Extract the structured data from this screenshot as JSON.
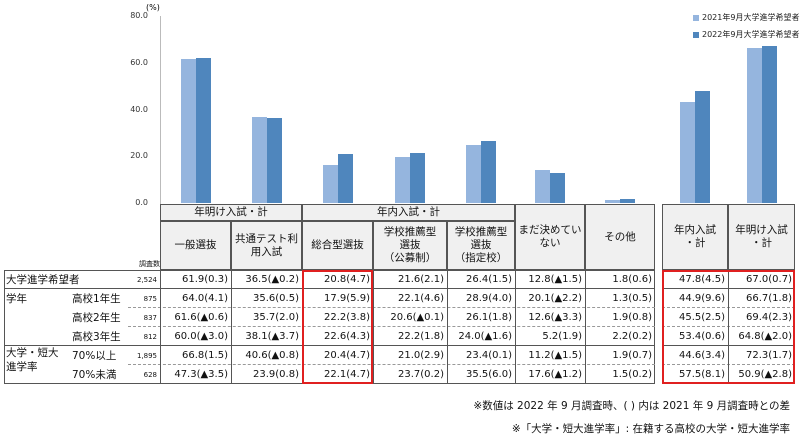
{
  "chart_data": {
    "type": "bar",
    "yunit": "(%)",
    "ylim": [
      0,
      80
    ],
    "yticks": [
      "0.0",
      "20.0",
      "40.0",
      "60.0",
      "80.0"
    ],
    "categories": [
      "一般選抜",
      "共通テスト利用入試",
      "総合型選抜",
      "学校推薦型選抜（公募制）",
      "学校推薦型選抜（指定校）",
      "まだ決めていない",
      "その他",
      "年内入試・計",
      "年明け入試・計"
    ],
    "series": [
      {
        "name": "2021年9月大学進学希望者",
        "color": "#95b5de",
        "values": [
          61.6,
          36.7,
          16.1,
          19.5,
          24.9,
          14.3,
          1.2,
          43.3,
          66.3
        ]
      },
      {
        "name": "2022年9月大学進学希望者",
        "color": "#4f86bd",
        "values": [
          61.9,
          36.5,
          20.8,
          21.6,
          26.4,
          12.8,
          1.8,
          47.8,
          67.0
        ]
      }
    ]
  },
  "table": {
    "group_headers": [
      "年明け入試・計",
      "年内入試・計"
    ],
    "count_header": "調査数",
    "col_headers": [
      "一般選抜",
      "共通テスト利\n用入試",
      "総合型選抜",
      "学校推薦型\n選抜\n（公募制）",
      "学校推薦型\n選抜\n（指定校）",
      "まだ決めてい\nない",
      "その他",
      "年内入試\n・計",
      "年明け入試\n・計"
    ],
    "row_groups": [
      "学年",
      "大学・短大\n進学率"
    ],
    "rows": [
      {
        "label": "大学進学希望者",
        "sub": "",
        "n": "2,524",
        "v": [
          "61.9(0.3)",
          "36.5(▲0.2)",
          "20.8(4.7)",
          "21.6(2.1)",
          "26.4(1.5)",
          "12.8(▲1.5)",
          "1.8(0.6)",
          "47.8(4.5)",
          "67.0(0.7)"
        ]
      },
      {
        "label": "",
        "sub": "高校1年生",
        "n": "875",
        "v": [
          "64.0(4.1)",
          "35.6(0.5)",
          "17.9(5.9)",
          "22.1(4.6)",
          "28.9(4.0)",
          "20.1(▲2.2)",
          "1.3(0.5)",
          "44.9(9.6)",
          "66.7(1.8)"
        ]
      },
      {
        "label": "",
        "sub": "高校2年生",
        "n": "837",
        "v": [
          "61.6(▲0.6)",
          "35.7(2.0)",
          "22.2(3.8)",
          "20.6(▲0.1)",
          "26.1(1.8)",
          "12.6(▲3.3)",
          "1.9(0.8)",
          "45.5(2.5)",
          "69.4(2.3)"
        ]
      },
      {
        "label": "",
        "sub": "高校3年生",
        "n": "812",
        "v": [
          "60.0(▲3.0)",
          "38.1(▲3.7)",
          "22.6(4.3)",
          "22.2(1.8)",
          "24.0(▲1.6)",
          "5.2(1.9)",
          "2.2(0.2)",
          "53.4(0.6)",
          "64.8(▲2.0)"
        ]
      },
      {
        "label": "",
        "sub": "70%以上",
        "n": "1,895",
        "v": [
          "66.8(1.5)",
          "40.6(▲0.8)",
          "20.4(4.7)",
          "21.0(2.9)",
          "23.4(0.1)",
          "11.2(▲1.5)",
          "1.9(0.7)",
          "44.6(3.4)",
          "72.3(1.7)"
        ]
      },
      {
        "label": "",
        "sub": "70%未満",
        "n": "628",
        "v": [
          "47.3(▲3.5)",
          "23.9(0.8)",
          "22.1(4.7)",
          "23.7(0.2)",
          "35.5(6.0)",
          "17.6(▲1.2)",
          "1.5(0.2)",
          "57.5(8.1)",
          "50.9(▲2.8)"
        ]
      }
    ]
  },
  "notes": [
    "※数値は 2022 年 9 月調査時、( ) 内は 2021 年 9 月調査時との差",
    "※「大学・短大進学率」: 在籍する高校の大学・短大進学率"
  ],
  "colors": {
    "highlight": "#e02020"
  }
}
